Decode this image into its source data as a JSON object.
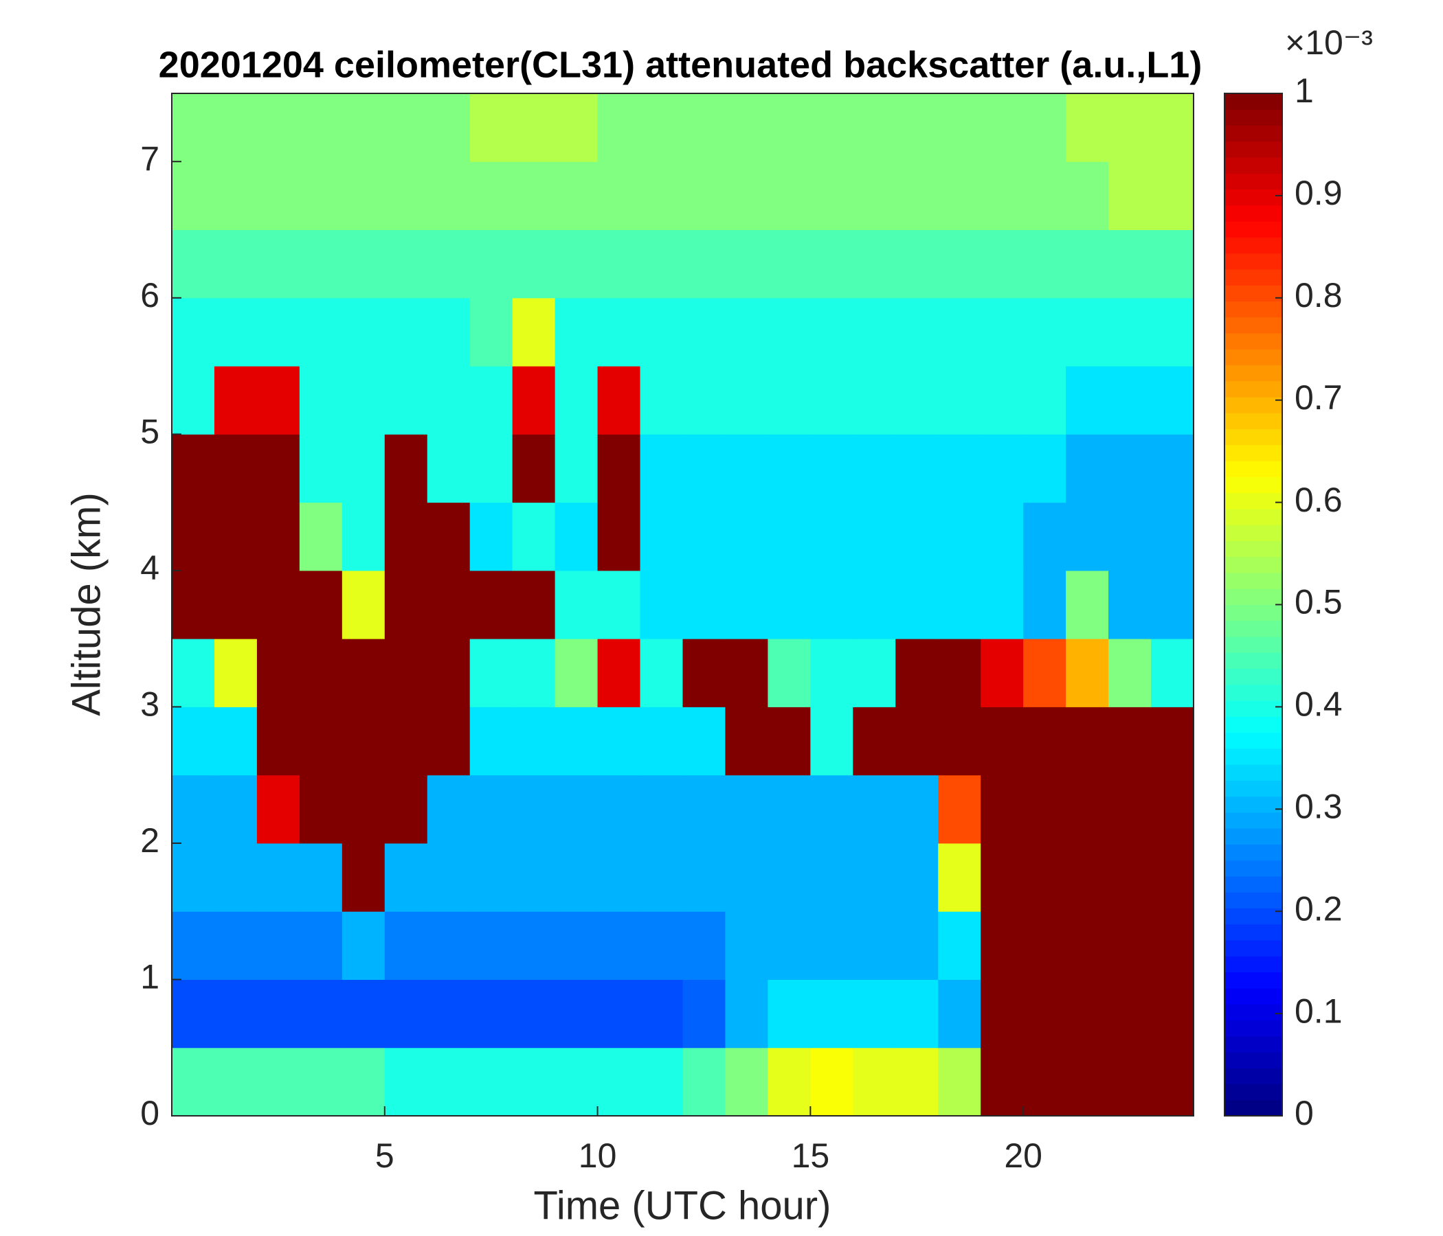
{
  "chart_data": {
    "type": "heatmap",
    "title": "20201204 ceilometer(CL31) attenuated backscatter (a.u.,L1)",
    "x_label": "Time (UTC hour)",
    "y_label": "Altitude (km)",
    "colorbar_multiplier": "×10⁻³",
    "colormap": "jet",
    "xlim": [
      0,
      24
    ],
    "xticks": [
      5,
      10,
      15,
      20
    ],
    "ylim": [
      0,
      7.5
    ],
    "yticks": [
      0,
      1,
      2,
      3,
      4,
      5,
      6,
      7
    ],
    "clim": [
      0,
      1
    ],
    "cticks": [
      0,
      0.1,
      0.2,
      0.3,
      0.4,
      0.5,
      0.6,
      0.7,
      0.8,
      0.9,
      1
    ],
    "x": [
      0.5,
      1.5,
      2.5,
      3.5,
      4.5,
      5.5,
      6.5,
      7.5,
      8.5,
      9.5,
      10.5,
      11.5,
      12.5,
      13.5,
      14.5,
      15.5,
      16.5,
      17.5,
      18.5,
      19.5,
      20.5,
      21.5,
      22.5,
      23.5
    ],
    "y": [
      0.25,
      0.75,
      1.25,
      1.75,
      2.25,
      2.75,
      3.25,
      3.75,
      4.25,
      4.75,
      5.25,
      5.75,
      6.25,
      6.75,
      7.25
    ],
    "z": [
      [
        0.45,
        0.45,
        0.45,
        0.45,
        0.45,
        0.4,
        0.4,
        0.4,
        0.4,
        0.4,
        0.4,
        0.4,
        0.45,
        0.5,
        0.6,
        0.62,
        0.6,
        0.6,
        0.55,
        1,
        1,
        1,
        1,
        1
      ],
      [
        0.2,
        0.2,
        0.2,
        0.2,
        0.2,
        0.2,
        0.2,
        0.2,
        0.2,
        0.2,
        0.2,
        0.2,
        0.22,
        0.3,
        0.35,
        0.35,
        0.35,
        0.35,
        0.3,
        1,
        1,
        1,
        1,
        1
      ],
      [
        0.25,
        0.25,
        0.25,
        0.25,
        0.3,
        0.25,
        0.25,
        0.25,
        0.25,
        0.25,
        0.25,
        0.25,
        0.25,
        0.3,
        0.3,
        0.3,
        0.3,
        0.3,
        0.35,
        1,
        1,
        1,
        1,
        1
      ],
      [
        0.3,
        0.3,
        0.3,
        0.3,
        1,
        0.3,
        0.3,
        0.3,
        0.3,
        0.3,
        0.3,
        0.3,
        0.3,
        0.3,
        0.3,
        0.3,
        0.3,
        0.3,
        0.6,
        1,
        1,
        1,
        1,
        1
      ],
      [
        0.3,
        0.3,
        0.9,
        1,
        1,
        1,
        0.3,
        0.3,
        0.3,
        0.3,
        0.3,
        0.3,
        0.3,
        0.3,
        0.3,
        0.3,
        0.3,
        0.3,
        0.8,
        1,
        1,
        1,
        1,
        1
      ],
      [
        0.35,
        0.35,
        1,
        1,
        1,
        1,
        1,
        0.35,
        0.35,
        0.35,
        0.35,
        0.35,
        0.35,
        1,
        1,
        0.4,
        1,
        1,
        1,
        1,
        1,
        1,
        1,
        1
      ],
      [
        0.4,
        0.6,
        1,
        1,
        1,
        1,
        1,
        0.4,
        0.4,
        0.5,
        0.9,
        0.4,
        1,
        1,
        0.45,
        0.4,
        0.4,
        1,
        1,
        0.9,
        0.8,
        0.7,
        0.5,
        0.4
      ],
      [
        1,
        1,
        1,
        1,
        0.6,
        1,
        1,
        1,
        1,
        0.4,
        0.4,
        0.35,
        0.35,
        0.35,
        0.35,
        0.35,
        0.35,
        0.35,
        0.35,
        0.35,
        0.3,
        0.5,
        0.3,
        0.3
      ],
      [
        1,
        1,
        1,
        0.5,
        0.4,
        1,
        1,
        0.35,
        0.4,
        0.35,
        1,
        0.35,
        0.35,
        0.35,
        0.35,
        0.35,
        0.35,
        0.35,
        0.35,
        0.35,
        0.3,
        0.3,
        0.3,
        0.3
      ],
      [
        1,
        1,
        1,
        0.4,
        0.4,
        1,
        0.4,
        0.4,
        1,
        0.4,
        1,
        0.35,
        0.35,
        0.35,
        0.35,
        0.35,
        0.35,
        0.35,
        0.35,
        0.35,
        0.35,
        0.3,
        0.3,
        0.3
      ],
      [
        0.4,
        0.9,
        0.9,
        0.4,
        0.4,
        0.4,
        0.4,
        0.4,
        0.9,
        0.4,
        0.9,
        0.4,
        0.4,
        0.4,
        0.4,
        0.4,
        0.4,
        0.4,
        0.4,
        0.4,
        0.4,
        0.35,
        0.35,
        0.35
      ],
      [
        0.4,
        0.4,
        0.4,
        0.4,
        0.4,
        0.4,
        0.4,
        0.45,
        0.6,
        0.4,
        0.4,
        0.4,
        0.4,
        0.4,
        0.4,
        0.4,
        0.4,
        0.4,
        0.4,
        0.4,
        0.4,
        0.4,
        0.4,
        0.4
      ],
      [
        0.45,
        0.45,
        0.45,
        0.45,
        0.45,
        0.45,
        0.45,
        0.45,
        0.45,
        0.45,
        0.45,
        0.45,
        0.45,
        0.45,
        0.45,
        0.45,
        0.45,
        0.45,
        0.45,
        0.45,
        0.45,
        0.45,
        0.45,
        0.45
      ],
      [
        0.5,
        0.5,
        0.5,
        0.5,
        0.5,
        0.5,
        0.5,
        0.5,
        0.5,
        0.5,
        0.5,
        0.5,
        0.5,
        0.5,
        0.5,
        0.5,
        0.5,
        0.5,
        0.5,
        0.5,
        0.5,
        0.5,
        0.55,
        0.55
      ],
      [
        0.5,
        0.5,
        0.5,
        0.5,
        0.5,
        0.5,
        0.5,
        0.55,
        0.55,
        0.55,
        0.5,
        0.5,
        0.5,
        0.5,
        0.5,
        0.5,
        0.5,
        0.5,
        0.5,
        0.5,
        0.5,
        0.55,
        0.55,
        0.55
      ]
    ]
  }
}
